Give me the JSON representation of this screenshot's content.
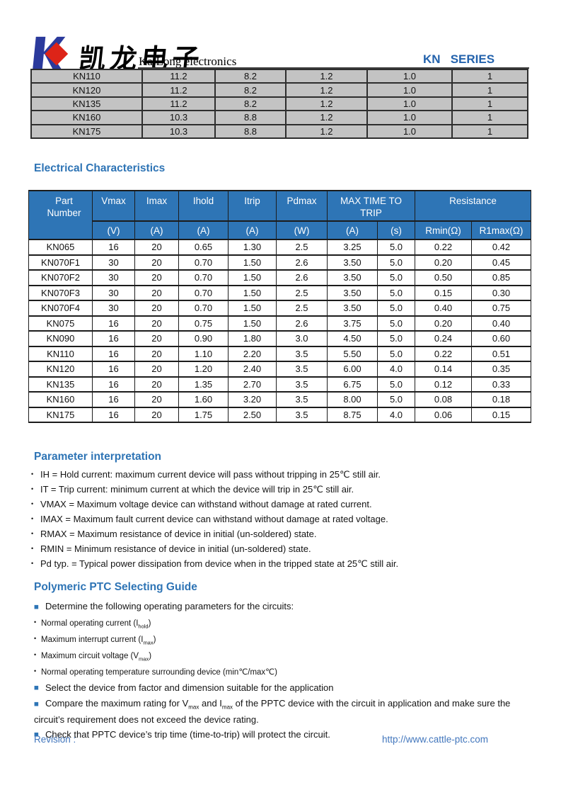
{
  "header": {
    "brand_cn": "凯龙电子",
    "brand_en": "KaiLong electronics",
    "series": "KN   SERIES"
  },
  "markers": {
    "dot": "•",
    "square": "■"
  },
  "colors": {
    "accent_blue": "#2E74B5",
    "table_header_blue": "#2E75B6",
    "series_blue": "#2362AC",
    "footer_blue": "#4377BD",
    "row_gray": "#C3C3C3",
    "logo_blue": "#2B3A9C",
    "logo_red": "#DD2418"
  },
  "top_table": {
    "rows": [
      [
        "KN110",
        "11.2",
        "8.2",
        "1.2",
        "1.0",
        "1"
      ],
      [
        "KN120",
        "11.2",
        "8.2",
        "1.2",
        "1.0",
        "1"
      ],
      [
        "KN135",
        "11.2",
        "8.2",
        "1.2",
        "1.0",
        "1"
      ],
      [
        "KN160",
        "10.3",
        "8.8",
        "1.2",
        "1.0",
        "1"
      ],
      [
        "KN175",
        "10.3",
        "8.8",
        "1.2",
        "1.0",
        "1"
      ]
    ]
  },
  "electrical": {
    "title": "Electrical Characteristics",
    "header": {
      "part_line1": "Part",
      "part_line2": "Number",
      "vmax": "Vmax",
      "imax": "Imax",
      "ihold": "Ihold",
      "itrip": "Itrip",
      "pdmax": "Pdmax",
      "max_time_line1": "MAX TIME TO",
      "max_time_line2": "TRIP",
      "resistance": "Resistance",
      "units": [
        "(V)",
        "(A)",
        "(A)",
        "(A)",
        "(W)",
        "(A)",
        "(s)",
        "Rmin(Ω)",
        "R1max(Ω)"
      ]
    },
    "rows": [
      [
        "KN065",
        "16",
        "20",
        "0.65",
        "1.30",
        "2.5",
        "3.25",
        "5.0",
        "0.22",
        "0.42"
      ],
      [
        "KN070F1",
        "30",
        "20",
        "0.70",
        "1.50",
        "2.6",
        "3.50",
        "5.0",
        "0.20",
        "0.45"
      ],
      [
        "KN070F2",
        "30",
        "20",
        "0.70",
        "1.50",
        "2.6",
        "3.50",
        "5.0",
        "0.50",
        "0.85"
      ],
      [
        "KN070F3",
        "30",
        "20",
        "0.70",
        "1.50",
        "2.5",
        "3.50",
        "5.0",
        "0.15",
        "0.30"
      ],
      [
        "KN070F4",
        "30",
        "20",
        "0.70",
        "1.50",
        "2.5",
        "3.50",
        "5.0",
        "0.40",
        "0.75"
      ],
      [
        "KN075",
        "16",
        "20",
        "0.75",
        "1.50",
        "2.6",
        "3.75",
        "5.0",
        "0.20",
        "0.40"
      ],
      [
        "KN090",
        "16",
        "20",
        "0.90",
        "1.80",
        "3.0",
        "4.50",
        "5.0",
        "0.24",
        "0.60"
      ],
      [
        "KN110",
        "16",
        "20",
        "1.10",
        "2.20",
        "3.5",
        "5.50",
        "5.0",
        "0.22",
        "0.51"
      ],
      [
        "KN120",
        "16",
        "20",
        "1.20",
        "2.40",
        "3.5",
        "6.00",
        "4.0",
        "0.14",
        "0.35"
      ],
      [
        "KN135",
        "16",
        "20",
        "1.35",
        "2.70",
        "3.5",
        "6.75",
        "5.0",
        "0.12",
        "0.33"
      ],
      [
        "KN160",
        "16",
        "20",
        "1.60",
        "3.20",
        "3.5",
        "8.00",
        "5.0",
        "0.08",
        "0.18"
      ],
      [
        "KN175",
        "16",
        "20",
        "1.75",
        "2.50",
        "3.5",
        "8.75",
        "4.0",
        "0.06",
        "0.15"
      ]
    ]
  },
  "parameter_interpretation": {
    "title": "Parameter interpretation",
    "bullets": [
      "IH = Hold current: maximum current device will pass without tripping in 25℃  still air.",
      "IT = Trip current: minimum current at which the device will trip in 25℃  still air.",
      "VMAX = Maximum voltage device can withstand without damage at rated current.",
      "IMAX = Maximum fault current device can withstand without damage at rated voltage.",
      "RMAX = Maximum resistance of device in initial (un-soldered) state.",
      "RMIN = Minimum resistance of device in initial (un-soldered) state.",
      "Pd typ. = Typical power dissipation from device when in the tripped state at 25℃  still air."
    ]
  },
  "selecting_guide": {
    "title": "Polymeric PTC Selecting Guide",
    "items": [
      {
        "text": "Determine the following operating parameters for the circuits:"
      },
      {
        "pre": "Normal operating current (I",
        "sub": "hold",
        "post": ")"
      },
      {
        "pre": "Maximum interrupt current (I",
        "sub": "max",
        "post": ")"
      },
      {
        "pre": "Maximum circuit voltage (V",
        "sub": "max",
        "post": ")"
      },
      {
        "text": "Normal operating temperature surrounding device (min℃/max℃)"
      },
      {
        "text": "Select the device from factor and dimension suitable for the application"
      },
      {
        "pre": "Compare the maximum rating for V",
        "sub1": "max",
        "mid": " and I",
        "sub2": "max",
        "post": " of the PPTC device with the circuit in application and make sure the circuit’s requirement does not exceed the device rating."
      },
      {
        "text": "Check that PPTC device’s trip time (time-to-trip) will protect the circuit."
      }
    ]
  },
  "footer": {
    "revision_label": "Revision :",
    "url": "http://www.cattle-ptc.com"
  }
}
